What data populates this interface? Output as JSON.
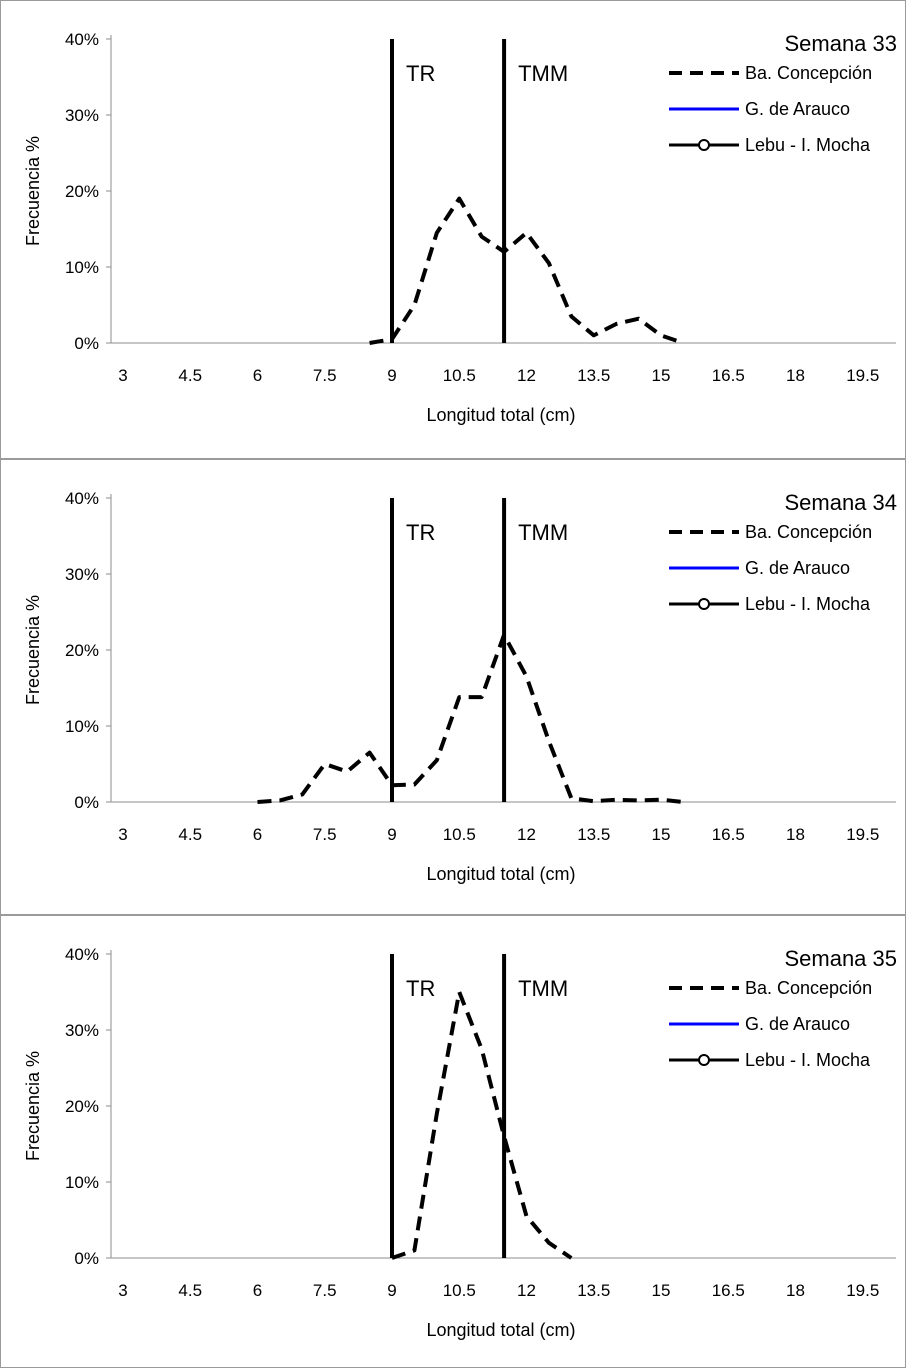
{
  "charts": [
    {
      "title": "Semana 33",
      "chart_data": {
        "type": "line",
        "title": "Semana 33",
        "xlabel": "Longitud total (cm)",
        "ylabel": "Frecuencia %",
        "x_ticks": [
          "3",
          "4.5",
          "6",
          "7.5",
          "9",
          "10.5",
          "12",
          "13.5",
          "15",
          "16.5",
          "18",
          "19.5"
        ],
        "y_ticks": [
          "0%",
          "10%",
          "20%",
          "30%",
          "40%"
        ],
        "xlim": [
          2.5,
          20.0
        ],
        "ylim": [
          0,
          40
        ],
        "grid": false,
        "legend_position": "top-right",
        "reference_lines": [
          {
            "label": "TR",
            "x": 9
          },
          {
            "label": "TMM",
            "x": 11.5
          }
        ],
        "series": [
          {
            "name": "Ba. Concepción",
            "style": "dashed",
            "color": "#000000",
            "x": [
              8.5,
              9.0,
              9.5,
              10.0,
              10.5,
              11.0,
              11.5,
              12.0,
              12.5,
              13.0,
              13.5,
              14.0,
              14.5,
              15.0,
              15.5
            ],
            "values": [
              0,
              0.5,
              5,
              14.5,
              19,
              14,
              12,
              14.5,
              10.5,
              3.5,
              1,
              2.5,
              3.2,
              1,
              0
            ]
          },
          {
            "name": "G. de Arauco",
            "style": "solid",
            "color": "#0000ff",
            "x": [],
            "values": []
          },
          {
            "name": "Lebu - I. Mocha",
            "style": "solid-marker",
            "color": "#000000",
            "x": [],
            "values": []
          }
        ]
      }
    },
    {
      "title": "Semana 34",
      "chart_data": {
        "type": "line",
        "title": "Semana 34",
        "xlabel": "Longitud total (cm)",
        "ylabel": "Frecuencia %",
        "x_ticks": [
          "3",
          "4.5",
          "6",
          "7.5",
          "9",
          "10.5",
          "12",
          "13.5",
          "15",
          "16.5",
          "18",
          "19.5"
        ],
        "y_ticks": [
          "0%",
          "10%",
          "20%",
          "30%",
          "40%"
        ],
        "xlim": [
          2.5,
          20.0
        ],
        "ylim": [
          0,
          40
        ],
        "grid": false,
        "legend_position": "top-right",
        "reference_lines": [
          {
            "label": "TR",
            "x": 9
          },
          {
            "label": "TMM",
            "x": 11.5
          }
        ],
        "series": [
          {
            "name": "Ba. Concepción",
            "style": "dashed",
            "color": "#000000",
            "x": [
              6.0,
              6.5,
              7.0,
              7.5,
              8.0,
              8.5,
              9.0,
              9.5,
              10.0,
              10.5,
              11.0,
              11.5,
              12.0,
              12.5,
              13.0,
              13.5,
              14.0,
              14.5,
              15.0,
              15.5
            ],
            "values": [
              0,
              0.2,
              1,
              5,
              4,
              6.5,
              2.2,
              2.3,
              5.5,
              13.8,
              13.8,
              22,
              16.5,
              8,
              0.5,
              0.1,
              0.3,
              0.2,
              0.3,
              0
            ]
          },
          {
            "name": "G. de Arauco",
            "style": "solid",
            "color": "#0000ff",
            "x": [],
            "values": []
          },
          {
            "name": "Lebu - I. Mocha",
            "style": "solid-marker",
            "color": "#000000",
            "x": [],
            "values": []
          }
        ]
      }
    },
    {
      "title": "Semana 35",
      "chart_data": {
        "type": "line",
        "title": "Semana 35",
        "xlabel": "Longitud total (cm)",
        "ylabel": "Frecuencia %",
        "x_ticks": [
          "3",
          "4.5",
          "6",
          "7.5",
          "9",
          "10.5",
          "12",
          "13.5",
          "15",
          "16.5",
          "18",
          "19.5"
        ],
        "y_ticks": [
          "0%",
          "10%",
          "20%",
          "30%",
          "40%"
        ],
        "xlim": [
          2.5,
          20.0
        ],
        "ylim": [
          0,
          40
        ],
        "grid": false,
        "legend_position": "top-right",
        "reference_lines": [
          {
            "label": "TR",
            "x": 9
          },
          {
            "label": "TMM",
            "x": 11.5
          }
        ],
        "series": [
          {
            "name": "Ba. Concepción",
            "style": "dashed",
            "color": "#000000",
            "x": [
              9.0,
              9.5,
              10.0,
              10.5,
              11.0,
              11.5,
              12.0,
              12.5,
              13.0
            ],
            "values": [
              0,
              1,
              19,
              35,
              27.5,
              16,
              5.5,
              2,
              0
            ]
          },
          {
            "name": "G. de Arauco",
            "style": "solid",
            "color": "#0000ff",
            "x": [],
            "values": []
          },
          {
            "name": "Lebu - I. Mocha",
            "style": "solid-marker",
            "color": "#000000",
            "x": [],
            "values": []
          }
        ]
      }
    }
  ]
}
